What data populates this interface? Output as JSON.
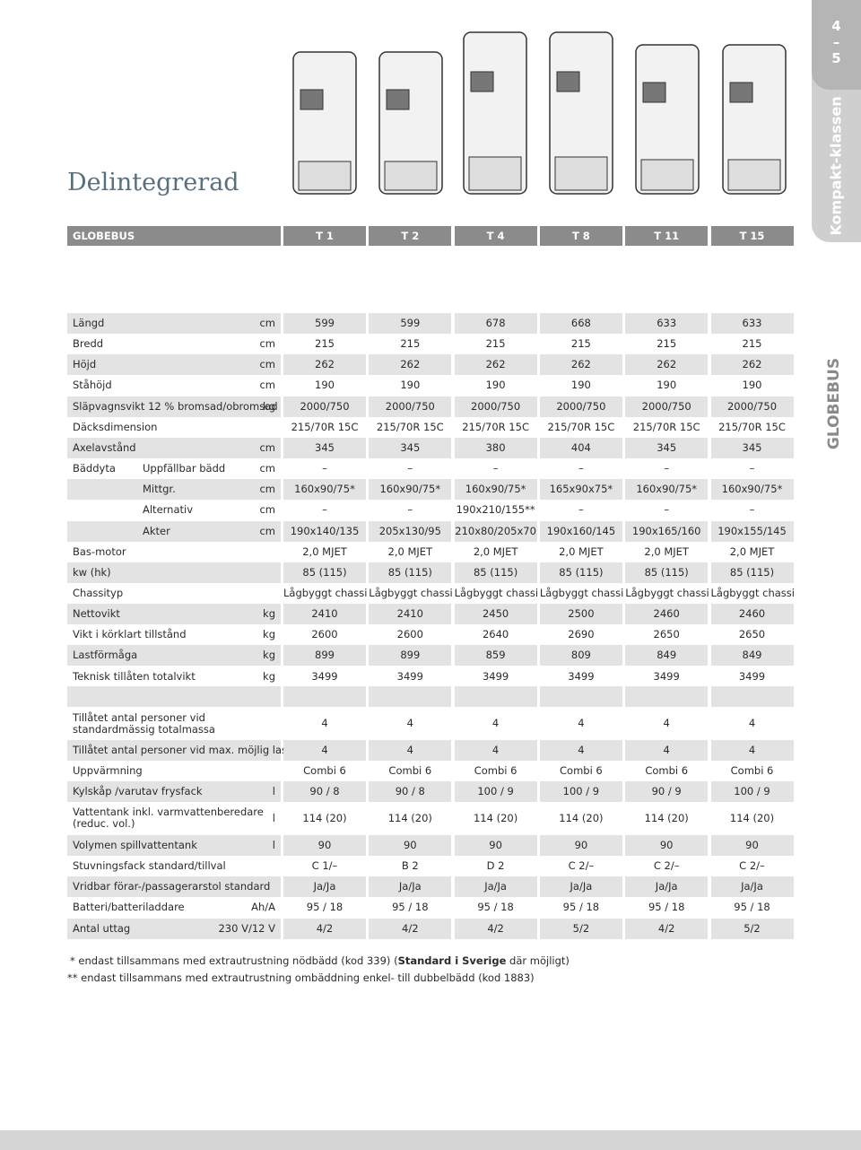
{
  "header": {
    "title": "Delintegrerad",
    "brand": "GLOBEBUS",
    "models": [
      "T 1",
      "T 2",
      "T 4",
      "T 8",
      "T 11",
      "T 15"
    ]
  },
  "side": {
    "page_top": "4",
    "page_sep": "–",
    "page_bottom": "5",
    "section": "Kompakt-klassen",
    "brand": "GLOBEBUS"
  },
  "table": {
    "rows": [
      {
        "label": "Längd",
        "unit": "cm",
        "values": [
          "599",
          "599",
          "678",
          "668",
          "633",
          "633"
        ]
      },
      {
        "label": "Bredd",
        "unit": "cm",
        "values": [
          "215",
          "215",
          "215",
          "215",
          "215",
          "215"
        ]
      },
      {
        "label": "Höjd",
        "unit": "cm",
        "values": [
          "262",
          "262",
          "262",
          "262",
          "262",
          "262"
        ]
      },
      {
        "label": "Ståhöjd",
        "unit": "cm",
        "values": [
          "190",
          "190",
          "190",
          "190",
          "190",
          "190"
        ]
      },
      {
        "label": "Släpvagnsvikt 12 % bromsad/obromsad",
        "unit": "kg",
        "values": [
          "2000/750",
          "2000/750",
          "2000/750",
          "2000/750",
          "2000/750",
          "2000/750"
        ]
      },
      {
        "label": "Däcksdimension",
        "values": [
          "215/70R 15C",
          "215/70R 15C",
          "215/70R 15C",
          "215/70R 15C",
          "215/70R 15C",
          "215/70R 15C"
        ]
      },
      {
        "label": "Axelavstånd",
        "unit": "cm",
        "values": [
          "345",
          "345",
          "380",
          "404",
          "345",
          "345"
        ]
      },
      {
        "label": "Bäddyta",
        "sublabel": "Uppfällbar bädd",
        "unit": "cm",
        "values": [
          "–",
          "–",
          "–",
          "–",
          "–",
          "–"
        ]
      },
      {
        "sublabel": "Mittgr.",
        "unit": "cm",
        "values": [
          "160x90/75*",
          "160x90/75*",
          "160x90/75*",
          "165x90x75*",
          "160x90/75*",
          "160x90/75*"
        ]
      },
      {
        "sublabel": "Alternativ",
        "unit": "cm",
        "values": [
          "–",
          "–",
          "190x210/155**",
          "–",
          "–",
          "–"
        ]
      },
      {
        "sublabel": "Akter",
        "unit": "cm",
        "values": [
          "190x140/135",
          "205x130/95",
          "210x80/205x70",
          "190x160/145",
          "190x165/160",
          "190x155/145"
        ]
      },
      {
        "label": "Bas-motor",
        "values": [
          "2,0 MJET",
          "2,0 MJET",
          "2,0 MJET",
          "2,0 MJET",
          "2,0 MJET",
          "2,0 MJET"
        ]
      },
      {
        "label": "kw (hk)",
        "values": [
          "85 (115)",
          "85 (115)",
          "85 (115)",
          "85 (115)",
          "85 (115)",
          "85 (115)"
        ]
      },
      {
        "label": "Chassityp",
        "values": [
          "Lågbyggt chassi",
          "Lågbyggt chassi",
          "Lågbyggt chassi",
          "Lågbyggt chassi",
          "Lågbyggt chassi",
          "Lågbyggt chassi"
        ]
      },
      {
        "label": "Nettovikt",
        "unit": "kg",
        "values": [
          "2410",
          "2410",
          "2450",
          "2500",
          "2460",
          "2460"
        ]
      },
      {
        "label": "Vikt i körklart tillstånd",
        "unit": "kg",
        "values": [
          "2600",
          "2600",
          "2640",
          "2690",
          "2650",
          "2650"
        ]
      },
      {
        "label": "Lastförmåga",
        "unit": "kg",
        "values": [
          "899",
          "899",
          "859",
          "809",
          "849",
          "849"
        ]
      },
      {
        "label": "Teknisk tillåten totalvikt",
        "unit": "kg",
        "values": [
          "3499",
          "3499",
          "3499",
          "3499",
          "3499",
          "3499"
        ]
      },
      {
        "label": "Tillåtet antal personer vid standardmässig totalmassa",
        "values": [
          "4",
          "4",
          "4",
          "4",
          "4",
          "4"
        ]
      },
      {
        "label": "Tillåtet antal personer vid max. möjlig last",
        "values": [
          "4",
          "4",
          "4",
          "4",
          "4",
          "4"
        ]
      },
      {
        "label": "Uppvärmning",
        "values": [
          "Combi 6",
          "Combi 6",
          "Combi 6",
          "Combi 6",
          "Combi 6",
          "Combi 6"
        ]
      },
      {
        "label": "Kylskåp /varutav frysfack",
        "unit": "l",
        "values": [
          "90 / 8",
          "90 / 8",
          "100 / 9",
          "100 / 9",
          "90 / 9",
          "100 / 9"
        ]
      },
      {
        "label": "Vattentank inkl. varmvattenberedare (reduc. vol.)",
        "unit": "l",
        "values": [
          "114 (20)",
          "114 (20)",
          "114 (20)",
          "114 (20)",
          "114 (20)",
          "114 (20)"
        ]
      },
      {
        "label": "Volymen spillvattentank",
        "unit": "l",
        "values": [
          "90",
          "90",
          "90",
          "90",
          "90",
          "90"
        ]
      },
      {
        "label": "Stuvningsfack standard/tillval",
        "values": [
          "C 1/–",
          "B 2",
          "D 2",
          "C 2/–",
          "C 2/–",
          "C 2/–"
        ]
      },
      {
        "label": "Vridbar förar-/passagerarstol standard",
        "values": [
          "Ja/Ja",
          "Ja/Ja",
          "Ja/Ja",
          "Ja/Ja",
          "Ja/Ja",
          "Ja/Ja"
        ]
      },
      {
        "label": "Batteri/batteriladdare",
        "unit": "Ah/A",
        "values": [
          "95 / 18",
          "95 / 18",
          "95 / 18",
          "95 / 18",
          "95 / 18",
          "95 / 18"
        ]
      },
      {
        "label": "Antal uttag",
        "unit": "230 V/12 V",
        "values": [
          "4/2",
          "4/2",
          "4/2",
          "5/2",
          "4/2",
          "5/2"
        ]
      }
    ]
  },
  "footnotes": [
    {
      "before": " * endast tillsammans med extrautrustning nödbädd (kod 339) (",
      "bold": "Standard i Sverige",
      "after": " där möjligt)"
    },
    {
      "before": "** endast tillsammans med extrautrustning ombäddning enkel- till dubbelbädd (kod 1883)"
    }
  ]
}
